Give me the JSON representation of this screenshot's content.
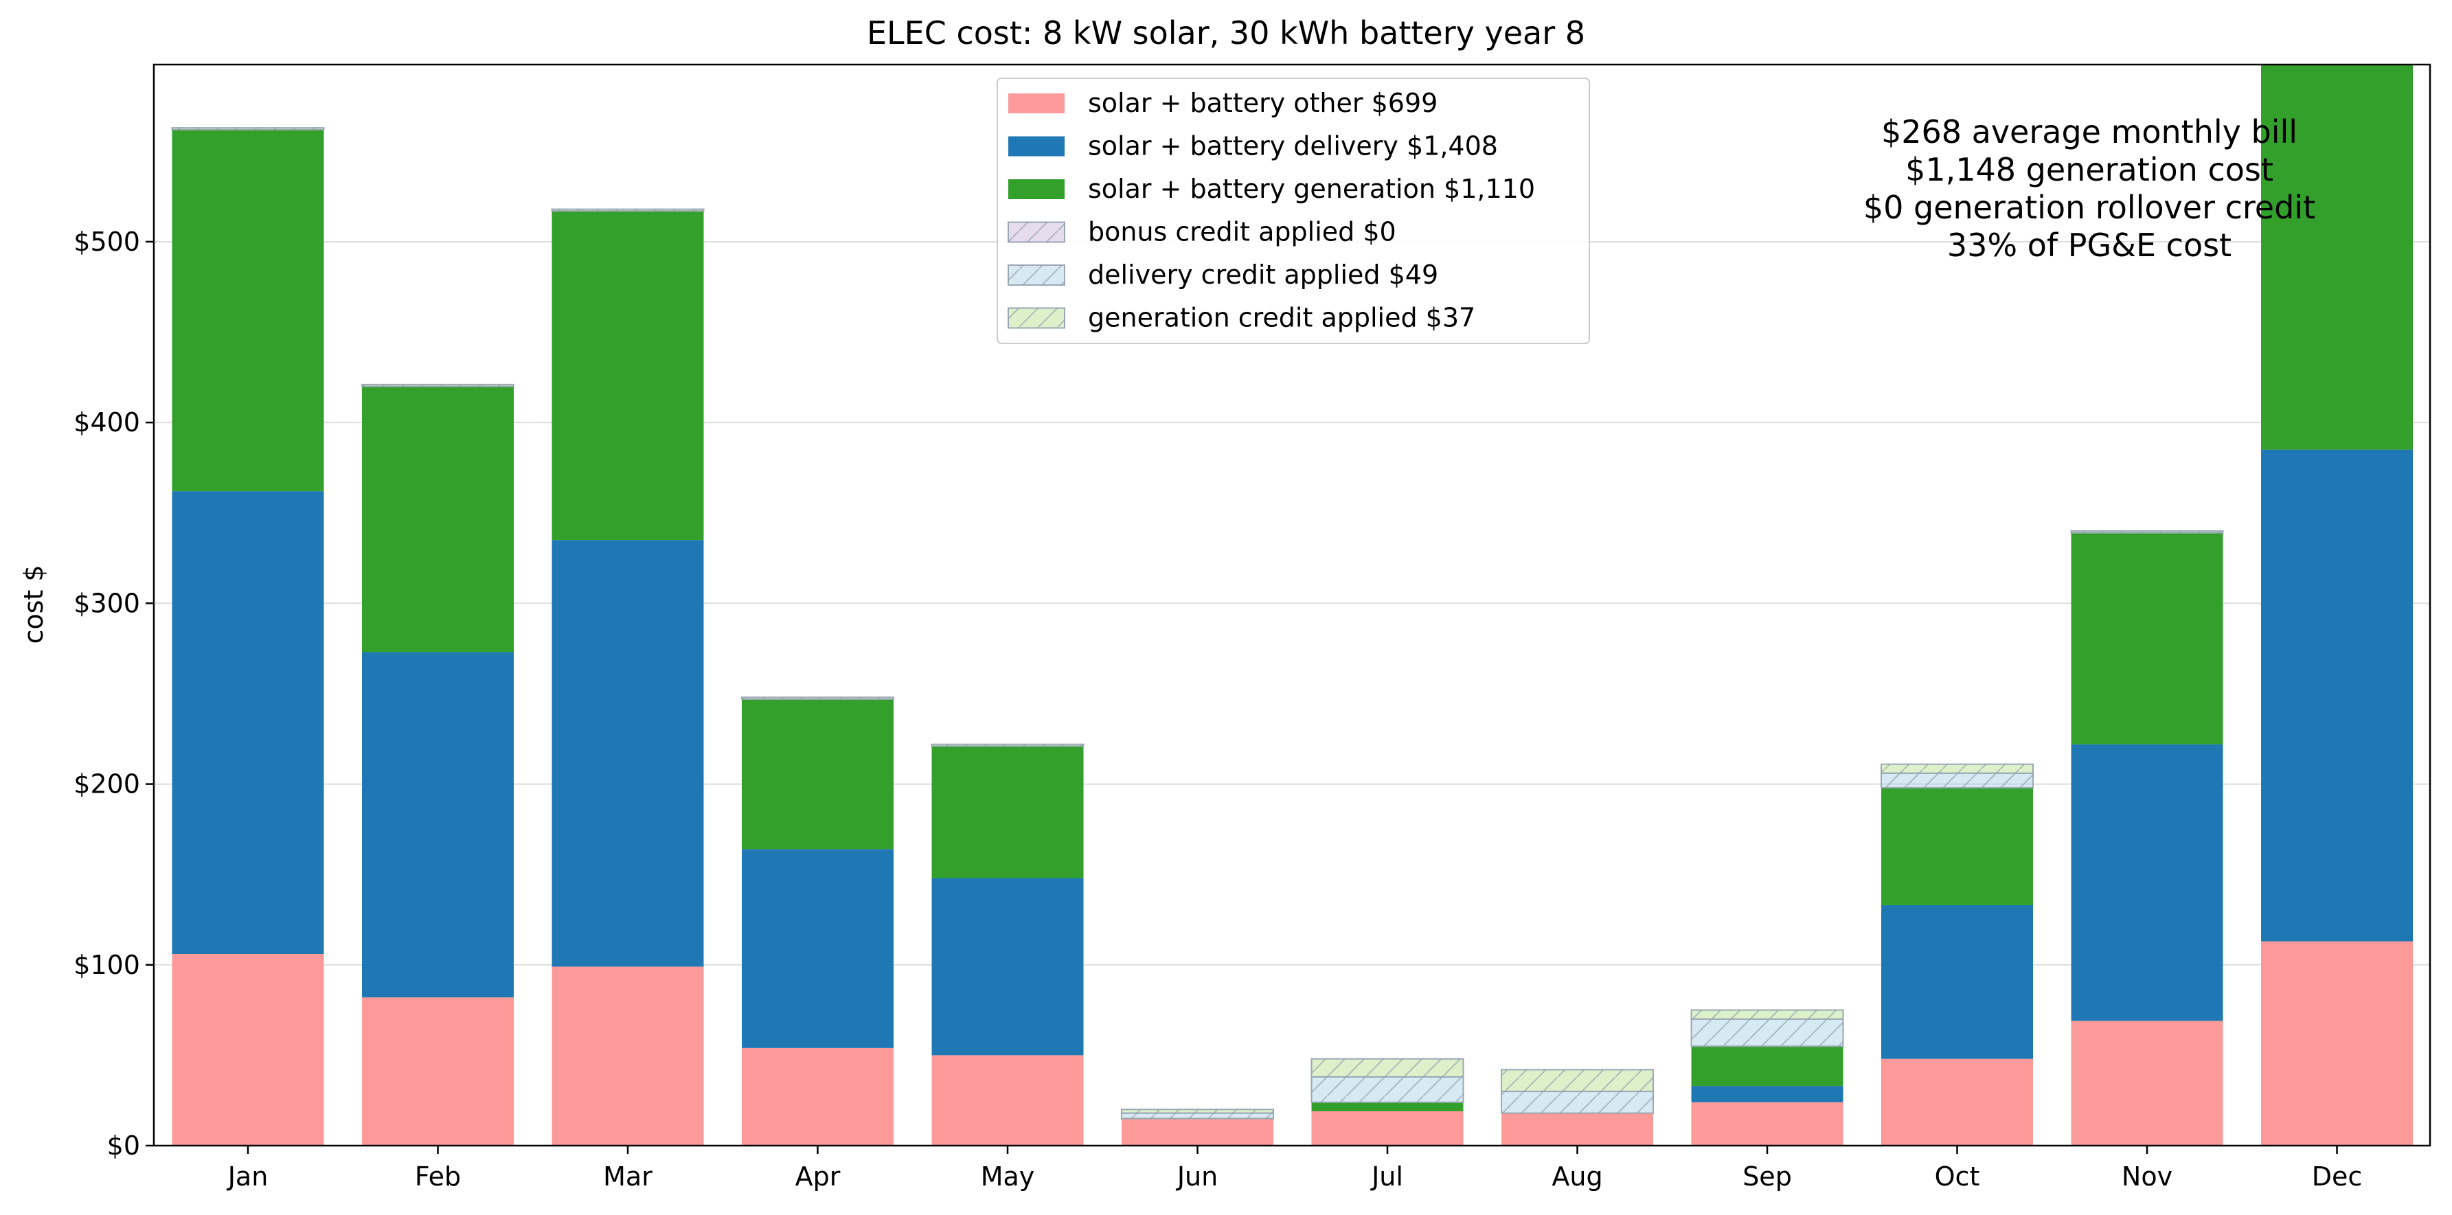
{
  "chart_data": {
    "type": "bar",
    "stacked": true,
    "title": "ELEC cost: 8 kW solar, 30 kWh battery year 8",
    "ylabel": "cost $",
    "xlabel": "",
    "ylim": [
      0,
      598
    ],
    "yticks": [
      0,
      100,
      200,
      300,
      400,
      500
    ],
    "ytick_labels": [
      "$0",
      "$100",
      "$200",
      "$300",
      "$400",
      "$500"
    ],
    "grid": "horizontal",
    "legend_position": "top-center",
    "categories": [
      "Jan",
      "Feb",
      "Mar",
      "Apr",
      "May",
      "Jun",
      "Jul",
      "Aug",
      "Sep",
      "Oct",
      "Nov",
      "Dec"
    ],
    "series": [
      {
        "name": "solar + battery other $699",
        "color": "#fb9a99",
        "hatch": false,
        "values": [
          106,
          82,
          99,
          54,
          50,
          15,
          19,
          18,
          24,
          48,
          69,
          113
        ]
      },
      {
        "name": "solar + battery delivery $1,408",
        "color": "#1f78b4",
        "hatch": false,
        "values": [
          256,
          191,
          236,
          110,
          98,
          0,
          0,
          0,
          9,
          85,
          153,
          272
        ]
      },
      {
        "name": "solar + battery generation $1,110",
        "color": "#33a02c",
        "hatch": false,
        "values": [
          200,
          147,
          182,
          83,
          73,
          0,
          5,
          0,
          22,
          65,
          117,
          213
        ]
      },
      {
        "name": "bonus credit applied $0",
        "color": "#cab2d6",
        "hatch": true,
        "values": [
          0,
          0,
          0,
          0,
          0,
          0,
          0,
          0,
          0,
          0,
          0,
          0
        ]
      },
      {
        "name": "delivery credit applied $49",
        "color": "#a6cee3",
        "hatch": true,
        "values": [
          0,
          0,
          0,
          0,
          0,
          3,
          14,
          12,
          15,
          8,
          0,
          0
        ]
      },
      {
        "name": "generation credit applied $37",
        "color": "#b2df8a",
        "hatch": true,
        "values": [
          1,
          1,
          1,
          1,
          1,
          2,
          10,
          12,
          5,
          5,
          1,
          0
        ]
      }
    ],
    "annotations": [
      "$268 average monthly bill",
      "$1,148 generation cost",
      "$0 generation rollover credit",
      "33% of PG&E cost"
    ]
  }
}
